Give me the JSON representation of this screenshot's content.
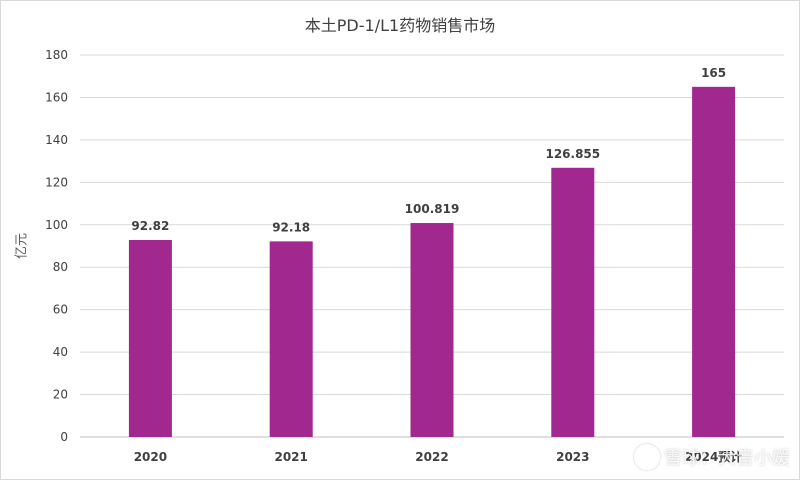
{
  "chart_data": {
    "type": "bar",
    "title": "本土PD-1/L1药物销售市场",
    "xlabel": "",
    "ylabel": "亿元",
    "categories": [
      "2020",
      "2021",
      "2022",
      "2023",
      "2024预计"
    ],
    "values": [
      92.82,
      92.18,
      100.819,
      126.855,
      165
    ],
    "data_labels": [
      "92.82",
      "92.18",
      "100.819",
      "126.855",
      "165"
    ],
    "ylim": [
      0,
      180
    ],
    "yticks": [
      0,
      20,
      40,
      60,
      80,
      100,
      120,
      140,
      160,
      180
    ],
    "grid": true,
    "bar_color": "#a0288f"
  },
  "watermark": {
    "text": "雪球：大音小媛"
  }
}
